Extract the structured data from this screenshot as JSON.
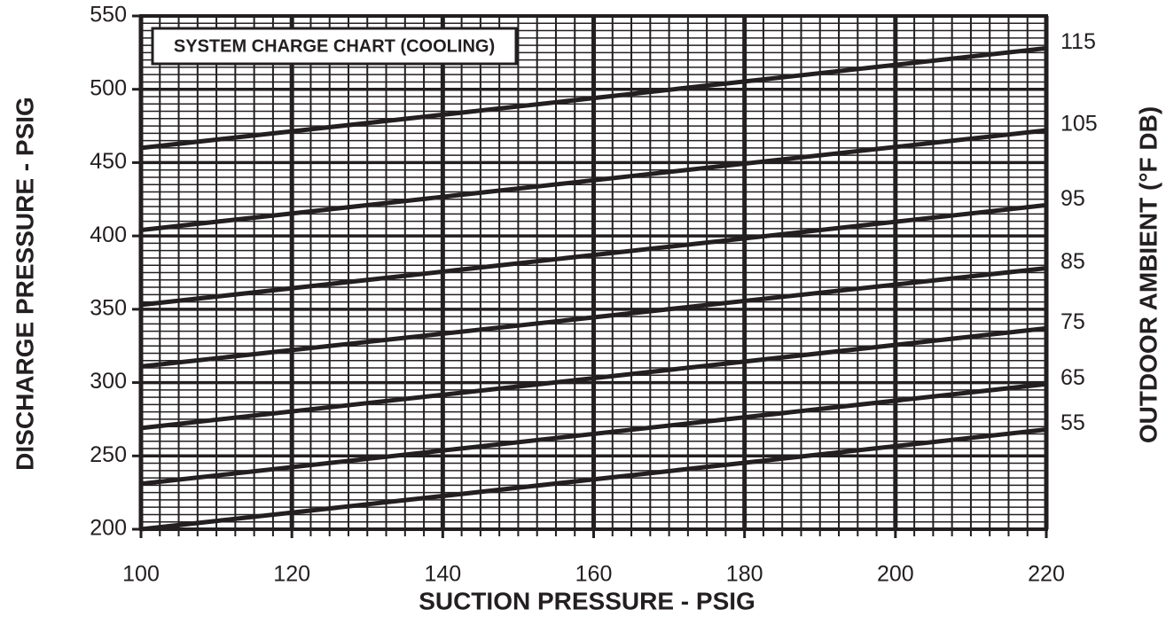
{
  "chart_data": {
    "type": "line",
    "title": "SYSTEM CHARGE CHART (COOLING)",
    "x_label": "SUCTION PRESSURE - PSIG",
    "y_label": "DISCHARGE PRESSURE - PSIG",
    "y2_label": "OUTDOOR AMBIENT (°F DB)",
    "x": [
      100,
      220
    ],
    "series": [
      {
        "name": "115",
        "color": "#231f20",
        "values": [
          460,
          528
        ]
      },
      {
        "name": "105",
        "color": "#231f20",
        "values": [
          404,
          472
        ]
      },
      {
        "name": "95",
        "color": "#231f20",
        "values": [
          353,
          421
        ]
      },
      {
        "name": "85",
        "color": "#231f20",
        "values": [
          311,
          378
        ]
      },
      {
        "name": "75",
        "color": "#231f20",
        "values": [
          269,
          337
        ]
      },
      {
        "name": "65",
        "color": "#231f20",
        "values": [
          231,
          299
        ]
      },
      {
        "name": "55",
        "color": "#231f20",
        "values": [
          200,
          268
        ]
      }
    ],
    "xlim": [
      100,
      220
    ],
    "xticks": [
      100,
      120,
      140,
      160,
      180,
      200,
      220
    ],
    "ylim": [
      200,
      550
    ],
    "yticks": [
      200,
      250,
      300,
      350,
      400,
      450,
      500,
      550
    ],
    "grid": true,
    "x_minor_step": 2.5,
    "y_minor_step": 5
  }
}
